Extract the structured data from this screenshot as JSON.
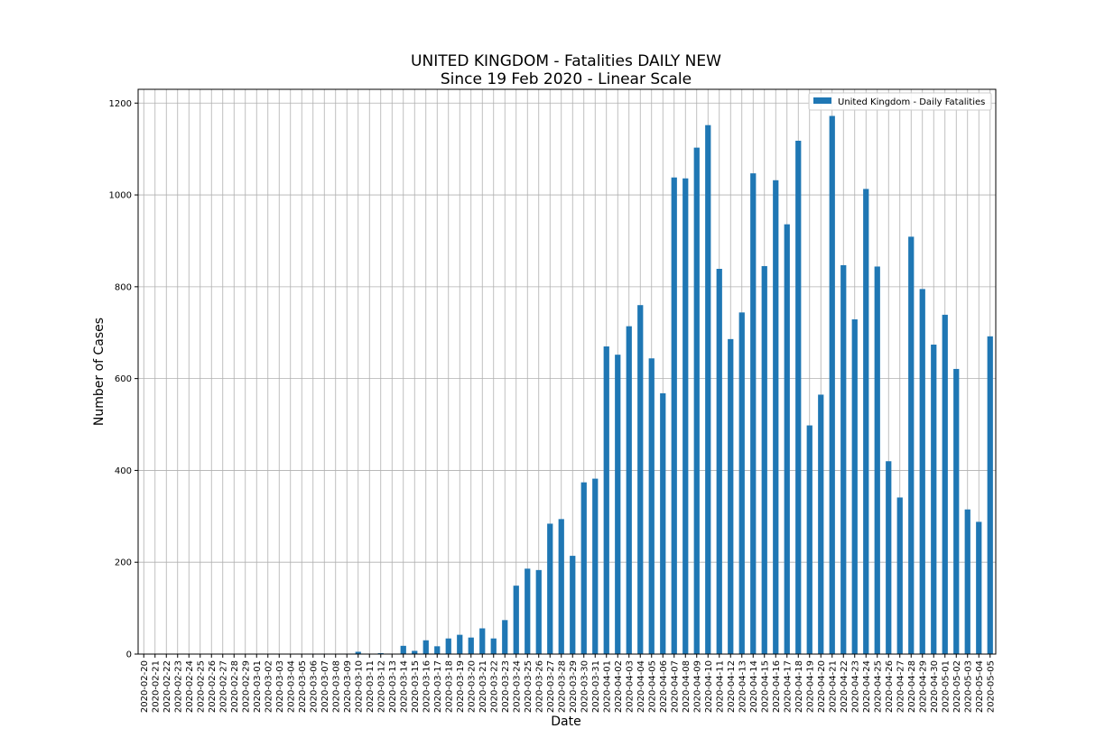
{
  "chart_data": {
    "type": "bar",
    "title": "UNITED KINGDOM - Fatalities DAILY NEW",
    "subtitle": "Since 19 Feb 2020 - Linear Scale",
    "xlabel": "Date",
    "ylabel": "Number of Cases",
    "ylim": [
      0,
      1230
    ],
    "yticks": [
      0,
      200,
      400,
      600,
      800,
      1000,
      1200
    ],
    "grid": true,
    "legend_position": "top-right",
    "bar_color": "#1f77b4",
    "series": [
      {
        "name": "United Kingdom - Daily Fatalities",
        "values": [
          0,
          0,
          0,
          0,
          0,
          0,
          0,
          0,
          0,
          0,
          0,
          0,
          0,
          0,
          0,
          1,
          1,
          0,
          1,
          5,
          0,
          2,
          1,
          18,
          7,
          30,
          17,
          34,
          42,
          36,
          56,
          34,
          74,
          149,
          186,
          183,
          284,
          294,
          214,
          374,
          382,
          670,
          652,
          714,
          760,
          644,
          568,
          1038,
          1036,
          1103,
          1152,
          839,
          686,
          744,
          1047,
          845,
          1032,
          936,
          1118,
          498,
          565,
          1172,
          847,
          729,
          1013,
          844,
          420,
          341,
          909,
          795,
          674,
          739,
          621,
          315,
          288,
          692
        ]
      }
    ],
    "categories": [
      "2020-02-20",
      "2020-02-21",
      "2020-02-22",
      "2020-02-23",
      "2020-02-24",
      "2020-02-25",
      "2020-02-26",
      "2020-02-27",
      "2020-02-28",
      "2020-02-29",
      "2020-03-01",
      "2020-03-02",
      "2020-03-03",
      "2020-03-04",
      "2020-03-05",
      "2020-03-06",
      "2020-03-07",
      "2020-03-08",
      "2020-03-09",
      "2020-03-10",
      "2020-03-11",
      "2020-03-12",
      "2020-03-13",
      "2020-03-14",
      "2020-03-15",
      "2020-03-16",
      "2020-03-17",
      "2020-03-18",
      "2020-03-19",
      "2020-03-20",
      "2020-03-21",
      "2020-03-22",
      "2020-03-23",
      "2020-03-24",
      "2020-03-25",
      "2020-03-26",
      "2020-03-27",
      "2020-03-28",
      "2020-03-29",
      "2020-03-30",
      "2020-03-31",
      "2020-04-01",
      "2020-04-02",
      "2020-04-03",
      "2020-04-04",
      "2020-04-05",
      "2020-04-06",
      "2020-04-07",
      "2020-04-08",
      "2020-04-09",
      "2020-04-10",
      "2020-04-11",
      "2020-04-12",
      "2020-04-13",
      "2020-04-14",
      "2020-04-15",
      "2020-04-16",
      "2020-04-17",
      "2020-04-18",
      "2020-04-19",
      "2020-04-20",
      "2020-04-21",
      "2020-04-22",
      "2020-04-23",
      "2020-04-24",
      "2020-04-25",
      "2020-04-26",
      "2020-04-27",
      "2020-04-28",
      "2020-04-29",
      "2020-04-30",
      "2020-05-01",
      "2020-05-02",
      "2020-05-03",
      "2020-05-04",
      "2020-05-05"
    ]
  }
}
